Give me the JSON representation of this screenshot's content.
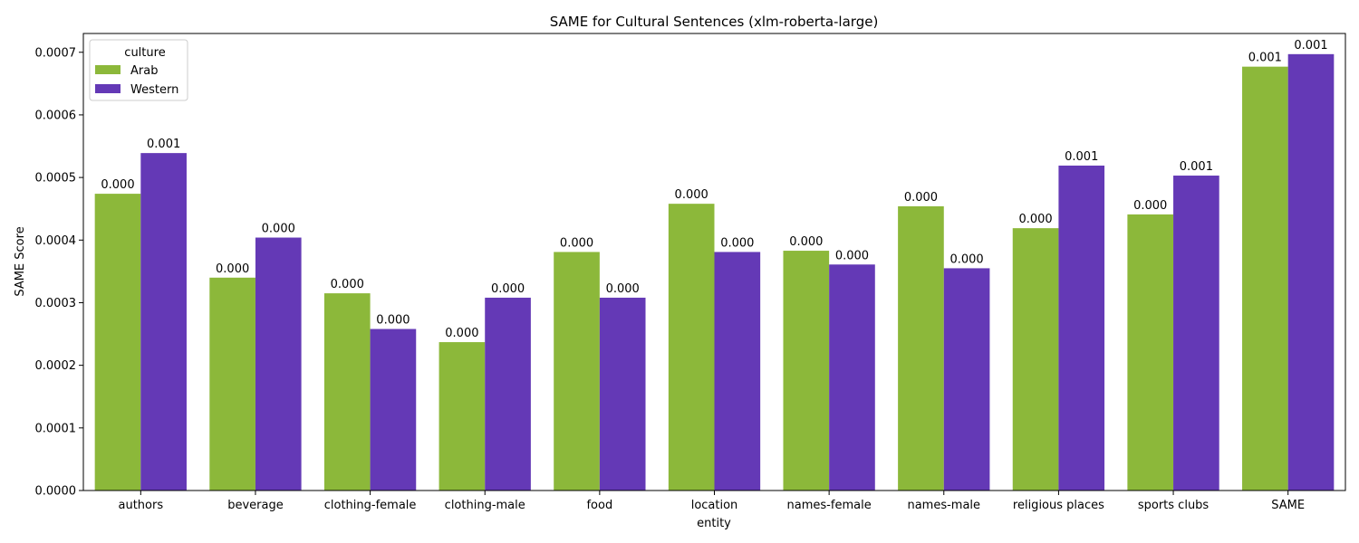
{
  "chart_data": {
    "type": "bar",
    "title": "SAME for Cultural Sentences (xlm-roberta-large)",
    "xlabel": "entity",
    "ylabel": "SAME Score",
    "ylim": [
      0,
      0.00073
    ],
    "yticks": [
      0,
      0.0001,
      0.0002,
      0.0003,
      0.0004,
      0.0005,
      0.0006,
      0.0007
    ],
    "ytick_labels": [
      "0.0000",
      "0.0001",
      "0.0002",
      "0.0003",
      "0.0004",
      "0.0005",
      "0.0006",
      "0.0007"
    ],
    "grid": false,
    "categories": [
      "authors",
      "beverage",
      "clothing-female",
      "clothing-male",
      "food",
      "location",
      "names-female",
      "names-male",
      "religious places",
      "sports clubs",
      "SAME"
    ],
    "legend": {
      "title": "culture",
      "placement": "top-left"
    },
    "series": [
      {
        "name": "Arab",
        "color": "#8cb83a",
        "values": [
          0.000474,
          0.00034,
          0.000315,
          0.000237,
          0.000381,
          0.000458,
          0.000383,
          0.000454,
          0.000419,
          0.000441,
          0.000677
        ],
        "labels": [
          "0.000",
          "0.000",
          "0.000",
          "0.000",
          "0.000",
          "0.000",
          "0.000",
          "0.000",
          "0.000",
          "0.000",
          "0.001"
        ]
      },
      {
        "name": "Western",
        "color": "#6439b6",
        "values": [
          0.000539,
          0.000404,
          0.000258,
          0.000308,
          0.000308,
          0.000381,
          0.000361,
          0.000355,
          0.000519,
          0.000503,
          0.000697
        ],
        "labels": [
          "0.001",
          "0.000",
          "0.000",
          "0.000",
          "0.000",
          "0.000",
          "0.000",
          "0.000",
          "0.001",
          "0.001",
          "0.001"
        ]
      }
    ]
  }
}
